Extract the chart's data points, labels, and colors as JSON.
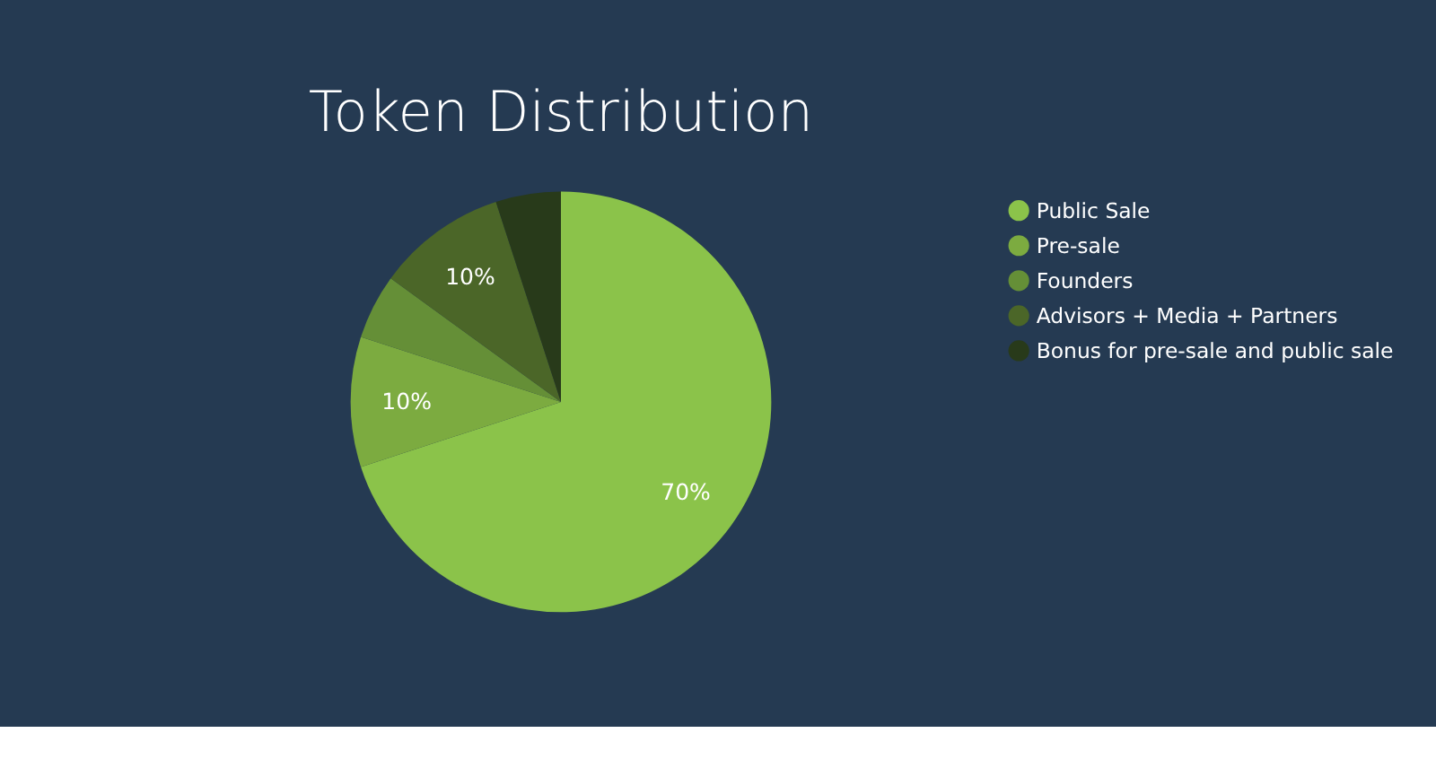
{
  "chart_data": {
    "type": "pie",
    "title": "Token Distribution",
    "categories": [
      "Public Sale",
      "Pre-sale",
      "Founders",
      "Advisors + Media + Partners",
      "Bonus for pre-sale and public sale"
    ],
    "values": [
      70,
      10,
      5,
      10,
      5
    ],
    "colors": [
      "#8bc34a",
      "#7cab40",
      "#658f37",
      "#4b6628",
      "#283a1a"
    ],
    "value_labels": [
      "70%",
      "10%",
      null,
      "10%",
      null
    ],
    "legend": "right"
  }
}
